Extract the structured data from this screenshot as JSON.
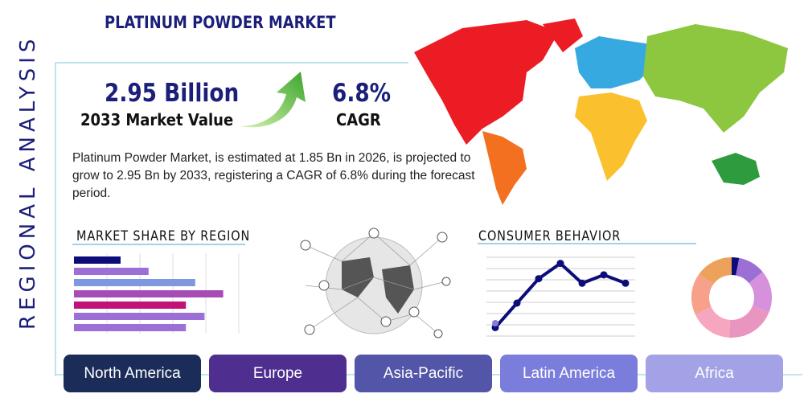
{
  "title": "PLATINUM POWDER MARKET",
  "side_label": "REGIONAL ANALYSIS",
  "market_value": {
    "value": "2.95 Billion",
    "label": "2033 Market Value"
  },
  "cagr": {
    "value": "6.8%",
    "label": "CAGR"
  },
  "description": "Platinum Powder Market, is estimated at 1.85 Bn in 2026, is projected to grow to 2.95 Bn by 2033, registering a CAGR of 6.8% during the forecast period.",
  "market_share": {
    "heading": "MARKET SHARE BY REGION",
    "bars": [
      {
        "level": 0.2,
        "color": "#0d0d7a"
      },
      {
        "level": 0.32,
        "color": "#9b6fd6"
      },
      {
        "level": 0.52,
        "color": "#7f97e0"
      },
      {
        "level": 0.64,
        "color": "#a64cb5"
      },
      {
        "level": 0.48,
        "color": "#c2127a"
      },
      {
        "level": 0.56,
        "color": "#9b6fd6"
      },
      {
        "level": 0.48,
        "color": "#9b6fd6"
      }
    ]
  },
  "consumer_behavior": {
    "heading": "CONSUMER BEHAVIOR",
    "line": [
      0.08,
      0.4,
      0.72,
      0.92,
      0.66,
      0.77,
      0.66
    ],
    "donut": [
      {
        "share": 0.03,
        "color": "#0d0d7a"
      },
      {
        "share": 0.11,
        "color": "#9b6fd6"
      },
      {
        "share": 0.17,
        "color": "#d690dc"
      },
      {
        "share": 0.2,
        "color": "#e895bf"
      },
      {
        "share": 0.17,
        "color": "#f7a6bf"
      },
      {
        "share": 0.17,
        "color": "#f7a08a"
      },
      {
        "share": 0.15,
        "color": "#eea15a"
      }
    ]
  },
  "regions": [
    {
      "label": "North America",
      "color": "#1b2c58"
    },
    {
      "label": "Europe",
      "color": "#4e2e8e"
    },
    {
      "label": "Asia-Pacific",
      "color": "#5355a8"
    },
    {
      "label": "Latin America",
      "color": "#7b7ddc"
    },
    {
      "label": "Africa",
      "color": "#a3a2e6"
    }
  ]
}
